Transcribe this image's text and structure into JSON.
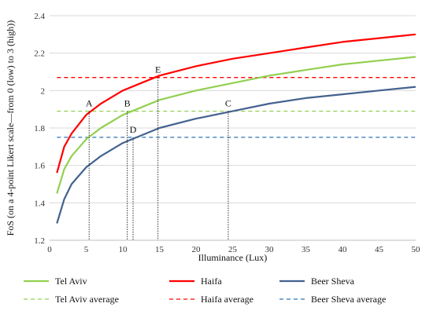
{
  "chart_data": {
    "type": "line",
    "xlabel": "Illuminance (Lux)",
    "ylabel": "FoS (on a 4-point Likert scale—from 0 (low) to 3 (high))",
    "xlim": [
      0,
      50
    ],
    "ylim": [
      1.2,
      2.4
    ],
    "xticks": [
      0,
      5,
      10,
      15,
      20,
      25,
      30,
      35,
      40,
      45,
      50
    ],
    "yticks": [
      1.2,
      1.4,
      1.6,
      1.8,
      2,
      2.2,
      2.4
    ],
    "grid": "horizontal",
    "legend_position": "bottom",
    "series": [
      {
        "name": "Tel Aviv",
        "color": "#92d050",
        "style": "solid",
        "x": [
          1,
          2,
          3,
          5,
          7,
          10,
          15,
          20,
          25,
          30,
          35,
          40,
          45,
          50
        ],
        "y": [
          1.45,
          1.58,
          1.65,
          1.74,
          1.8,
          1.87,
          1.95,
          2.0,
          2.04,
          2.08,
          2.11,
          2.14,
          2.16,
          2.18
        ]
      },
      {
        "name": "Haifa",
        "color": "#ff0000",
        "style": "solid",
        "x": [
          1,
          2,
          3,
          5,
          7,
          10,
          15,
          20,
          25,
          30,
          35,
          40,
          45,
          50
        ],
        "y": [
          1.56,
          1.7,
          1.77,
          1.87,
          1.93,
          2.0,
          2.08,
          2.13,
          2.17,
          2.2,
          2.23,
          2.26,
          2.28,
          2.3
        ]
      },
      {
        "name": "Beer Sheva",
        "color": "#44628f",
        "style": "solid",
        "x": [
          1,
          2,
          3,
          5,
          7,
          10,
          15,
          20,
          25,
          30,
          35,
          40,
          45,
          50
        ],
        "y": [
          1.29,
          1.42,
          1.5,
          1.59,
          1.65,
          1.72,
          1.8,
          1.85,
          1.89,
          1.93,
          1.96,
          1.98,
          2.0,
          2.02
        ]
      },
      {
        "name": "Tel Aviv average",
        "color": "#92d050",
        "style": "dashed",
        "x": [
          1,
          50
        ],
        "y": [
          1.89,
          1.89
        ]
      },
      {
        "name": "Haifa average",
        "color": "#ff0000",
        "style": "dashed",
        "x": [
          1,
          50
        ],
        "y": [
          2.07,
          2.07
        ]
      },
      {
        "name": "Beer Sheva average",
        "color": "#2e75b6",
        "style": "dashed",
        "x": [
          1,
          50
        ],
        "y": [
          1.75,
          1.75
        ]
      }
    ],
    "annotations": [
      {
        "label": "A",
        "x": 5.4,
        "y": 1.89
      },
      {
        "label": "B",
        "x": 10.6,
        "y": 1.89
      },
      {
        "label": "C",
        "x": 24.4,
        "y": 1.89
      },
      {
        "label": "D",
        "x": 11.4,
        "y": 1.75
      },
      {
        "label": "E",
        "x": 14.8,
        "y": 2.07
      }
    ]
  }
}
